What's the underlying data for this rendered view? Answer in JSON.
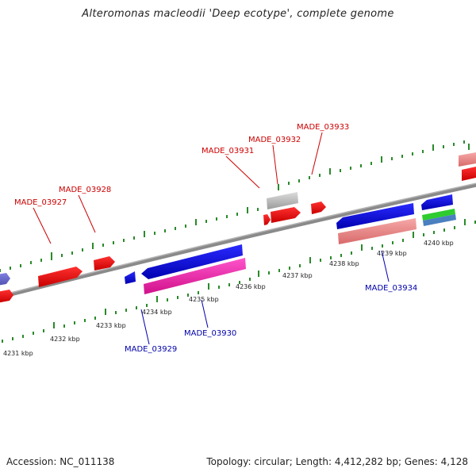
{
  "title": "Alteromonas macleodii 'Deep ecotype', complete genome",
  "footer": {
    "accession": "Accession: NC_011138",
    "summary": "Topology: circular; Length: 4,412,282 bp; Genes: 4,128"
  },
  "colors": {
    "forward_label": "#cc0000",
    "reverse_label": "#0000aa",
    "backbone": "#8a8a8a",
    "ticks": "#2a8a2a"
  },
  "scale_labels": [
    "4231 kbp",
    "4232 kbp",
    "4233 kbp",
    "4234 kbp",
    "4235 kbp",
    "4236 kbp",
    "4237 kbp",
    "4238 kbp",
    "4239 kbp",
    "4240 kbp"
  ],
  "gene_labels": {
    "MADE_03927": "MADE_03927",
    "MADE_03928": "MADE_03928",
    "MADE_03929": "MADE_03929",
    "MADE_03930": "MADE_03930",
    "MADE_03931": "MADE_03931",
    "MADE_03932": "MADE_03932",
    "MADE_03933": "MADE_03933",
    "MADE_03934": "MADE_03934"
  }
}
